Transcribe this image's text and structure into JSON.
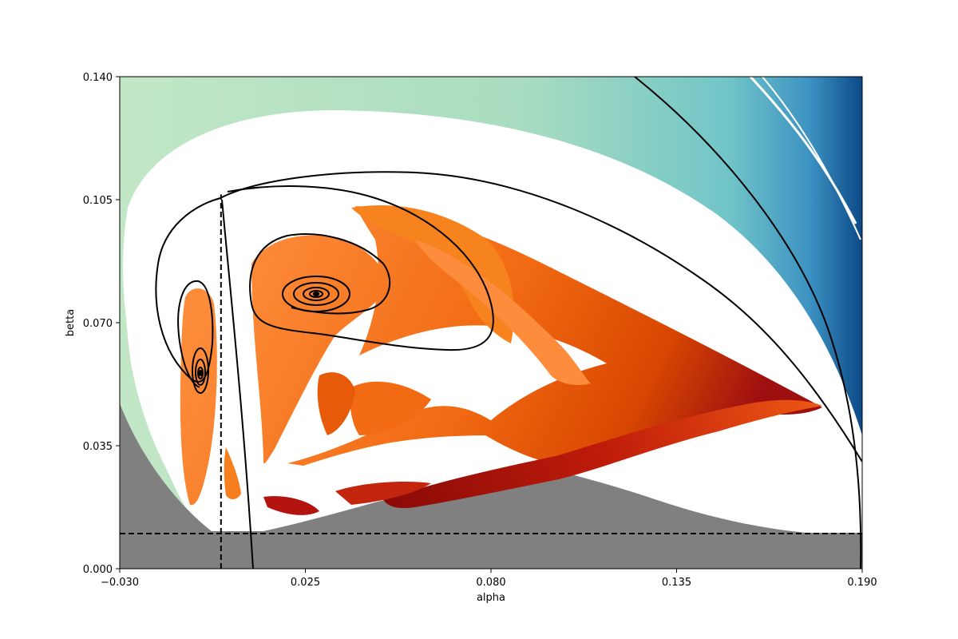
{
  "chart_data": {
    "type": "heatmap",
    "title": "",
    "xlabel": "alpha",
    "ylabel": "betta",
    "xlim": [
      -0.03,
      0.19
    ],
    "ylim": [
      0.0,
      0.14
    ],
    "x_ticks": [
      "−0.030",
      "0.025",
      "0.080",
      "0.135",
      "0.190"
    ],
    "x_tick_values": [
      -0.03,
      0.025,
      0.08,
      0.135,
      0.19
    ],
    "y_ticks": [
      "0.000",
      "0.035",
      "0.070",
      "0.105",
      "0.140"
    ],
    "y_tick_values": [
      0.0,
      0.035,
      0.07,
      0.105,
      0.14
    ],
    "grid": false,
    "legend": "none",
    "regions": [
      {
        "name": "gray-region",
        "color": "#808080"
      },
      {
        "name": "teal-blue-region",
        "colors": [
          "#c0e6c4",
          "#a7dcc0",
          "#6fc3c9",
          "#3a8fc0",
          "#0b4a8a"
        ]
      },
      {
        "name": "orange-red-region",
        "colors": [
          "#fd8d3c",
          "#f16913",
          "#d94801",
          "#a50f15",
          "#7f0000"
        ]
      }
    ],
    "reference_lines": [
      {
        "style": "dashed",
        "orientation": "horizontal",
        "y": 0.01
      },
      {
        "style": "dashed",
        "orientation": "vertical",
        "x": 0.0
      }
    ],
    "spirals": [
      {
        "center": [
          0.0275,
          0.0785
        ]
      },
      {
        "center": [
          -0.0055,
          0.0555
        ]
      }
    ]
  }
}
